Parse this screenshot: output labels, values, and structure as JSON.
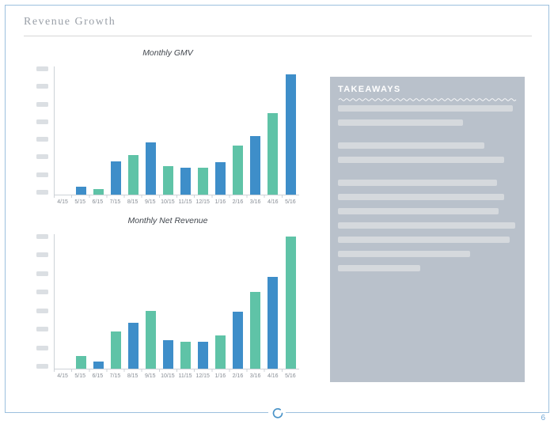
{
  "slide": {
    "title": "Revenue Growth",
    "page_number": "6"
  },
  "palette": {
    "blue": "#3e8ec9",
    "green": "#5fc3a7",
    "panel_bg": "#b9c1cb",
    "placeholder_gray": "#d5d9dd",
    "frame_blue": "#9cc0de"
  },
  "chart_data": [
    {
      "type": "bar",
      "title": "Monthly GMV",
      "categories": [
        "4/15",
        "5/15",
        "6/15",
        "7/15",
        "8/15",
        "9/15",
        "10/15",
        "11/15",
        "12/15",
        "1/16",
        "2/16",
        "3/16",
        "4/16",
        "5/16"
      ],
      "values": [
        0,
        10,
        7,
        42,
        50,
        66,
        36,
        34,
        34,
        41,
        62,
        74,
        103,
        152
      ],
      "bar_color_keys": [
        "blue",
        "blue",
        "green",
        "blue",
        "green",
        "blue",
        "green",
        "blue",
        "green",
        "blue",
        "green",
        "blue",
        "green",
        "blue"
      ],
      "xlabel": "",
      "ylabel": "",
      "y_axis_tick_labels": "redacted placeholder blocks",
      "y_tick_count": 8,
      "value_units": "relative bar height (y-axis labels are redacted placeholders)",
      "legend": "none",
      "grid": "off"
    },
    {
      "type": "bar",
      "title": "Monthly Net Revenue",
      "categories": [
        "4/15",
        "5/15",
        "6/15",
        "7/15",
        "8/15",
        "9/15",
        "10/15",
        "11/15",
        "12/15",
        "1/16",
        "2/16",
        "3/16",
        "4/16",
        "5/16"
      ],
      "values": [
        0,
        16,
        9,
        47,
        58,
        73,
        36,
        34,
        34,
        42,
        72,
        97,
        116,
        167
      ],
      "bar_color_keys": [
        "green",
        "green",
        "blue",
        "green",
        "blue",
        "green",
        "blue",
        "green",
        "blue",
        "green",
        "blue",
        "green",
        "blue",
        "green"
      ],
      "xlabel": "",
      "ylabel": "",
      "y_axis_tick_labels": "redacted placeholder blocks",
      "y_tick_count": 8,
      "value_units": "relative bar height (y-axis labels are redacted placeholders)",
      "legend": "none",
      "grid": "off"
    }
  ],
  "takeaways": {
    "title": "TAKEAWAYS",
    "lines": [
      {
        "width_pct": 98,
        "gap_before": false
      },
      {
        "width_pct": 70,
        "gap_before": false
      },
      {
        "width_pct": 82,
        "gap_before": true
      },
      {
        "width_pct": 93,
        "gap_before": false
      },
      {
        "width_pct": 89,
        "gap_before": true
      },
      {
        "width_pct": 93,
        "gap_before": false
      },
      {
        "width_pct": 90,
        "gap_before": false
      },
      {
        "width_pct": 99,
        "gap_before": false
      },
      {
        "width_pct": 96,
        "gap_before": false
      },
      {
        "width_pct": 74,
        "gap_before": false
      },
      {
        "width_pct": 46,
        "gap_before": false
      }
    ]
  }
}
